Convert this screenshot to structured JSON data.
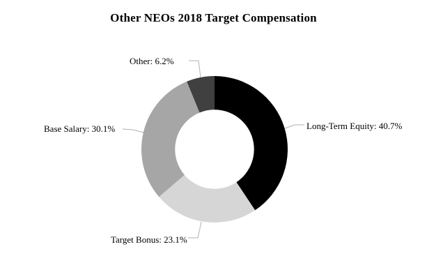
{
  "page": {
    "background_color": "#ffffff"
  },
  "chart_data": {
    "type": "pie",
    "variant": "donut",
    "title": "Other NEOs 2018 Target Compensation",
    "direction": "clockwise",
    "start_angle_deg": 0,
    "inner_radius_ratio": 0.54,
    "legend_position": "none",
    "grid": false,
    "leader_line_color": "#b0b0b0",
    "slices": [
      {
        "name": "Long-Term Equity",
        "value": 40.7,
        "color": "#000000",
        "label": "Long-Term Equity: 40.7%"
      },
      {
        "name": "Target Bonus",
        "value": 23.1,
        "color": "#d6d6d6",
        "label": "Target Bonus: 23.1%"
      },
      {
        "name": "Base Salary",
        "value": 30.1,
        "color": "#a6a6a6",
        "label": "Base Salary: 30.1%"
      },
      {
        "name": "Other",
        "value": 6.2,
        "color": "#404040",
        "label": "Other: 6.2%"
      }
    ]
  }
}
